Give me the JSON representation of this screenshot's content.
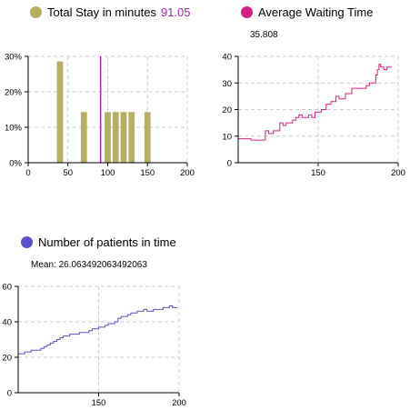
{
  "widgets": {
    "total_stay": {
      "label": "Total Stay in minutes",
      "value": "91.05",
      "color": "#b5ae63",
      "value_color": "#9a2aa6"
    },
    "avg_wait": {
      "label": "Average Waiting Time",
      "value": "35.808",
      "color": "#d61f86"
    },
    "patients": {
      "label": "Number of patients in time",
      "mean": "Mean: 26.063492063492063",
      "color": "#5a4fcf"
    }
  },
  "chart_data": [
    {
      "type": "bar",
      "name": "total-stay-histogram",
      "xlim": [
        0,
        200
      ],
      "ylim": [
        0,
        0.3
      ],
      "xticks": [
        "0",
        "50",
        "100",
        "150",
        "200"
      ],
      "yticks": [
        "0%",
        "10%",
        "20%",
        "30%"
      ],
      "bin_width": 10,
      "bins": [
        {
          "x": 40,
          "value": 0.2857
        },
        {
          "x": 70,
          "value": 0.1429
        },
        {
          "x": 100,
          "value": 0.1429
        },
        {
          "x": 110,
          "value": 0.1429
        },
        {
          "x": 120,
          "value": 0.1429
        },
        {
          "x": 130,
          "value": 0.1429
        },
        {
          "x": 150,
          "value": 0.1429
        }
      ],
      "marker_x": 91.05,
      "grid": true
    },
    {
      "type": "line",
      "name": "average-waiting-time",
      "xlim": [
        100,
        200
      ],
      "ylim": [
        0,
        40
      ],
      "xticks": [
        "150",
        "200"
      ],
      "yticks": [
        "0",
        "10",
        "20",
        "30",
        "40"
      ],
      "x": [
        100,
        104,
        108,
        110,
        114,
        116,
        117,
        119,
        122,
        126,
        128,
        130,
        132,
        134,
        136,
        138,
        140,
        144,
        146,
        148,
        150,
        152,
        153,
        155,
        158,
        160,
        161,
        163,
        165,
        167,
        169,
        171,
        173,
        176,
        178,
        180,
        182,
        185,
        186,
        187,
        188,
        189,
        191,
        193,
        196
      ],
      "y": [
        9,
        9,
        8.5,
        8.5,
        8.5,
        8.5,
        12,
        11,
        12,
        15,
        14,
        15,
        15,
        16,
        17,
        18,
        17,
        18,
        17,
        19,
        19,
        20,
        20,
        22,
        23,
        23,
        25,
        24,
        24,
        26,
        26,
        28,
        28,
        28,
        28,
        29,
        30,
        30,
        33,
        35,
        37,
        36,
        35,
        36,
        36
      ],
      "grid": true
    },
    {
      "type": "line",
      "name": "number-of-patients",
      "xlim": [
        100,
        200
      ],
      "ylim": [
        0,
        60
      ],
      "xticks": [
        "150",
        "200"
      ],
      "yticks": [
        "0",
        "20",
        "40",
        "60"
      ],
      "x": [
        100,
        104,
        108,
        110,
        114,
        116,
        118,
        120,
        122,
        124,
        126,
        128,
        130,
        132,
        134,
        136,
        138,
        140,
        144,
        146,
        148,
        150,
        154,
        156,
        160,
        162,
        164,
        168,
        170,
        172,
        174,
        178,
        180,
        184,
        188,
        190,
        194,
        196,
        199
      ],
      "y": [
        22,
        23,
        24,
        24,
        25,
        26,
        27,
        28,
        29,
        30,
        31,
        32,
        32,
        33,
        33,
        33,
        34,
        34,
        35,
        36,
        36,
        37,
        38,
        39,
        40,
        42,
        43,
        44,
        45,
        45,
        46,
        47,
        46,
        47,
        47,
        48,
        49,
        48,
        48
      ],
      "grid": true
    }
  ]
}
